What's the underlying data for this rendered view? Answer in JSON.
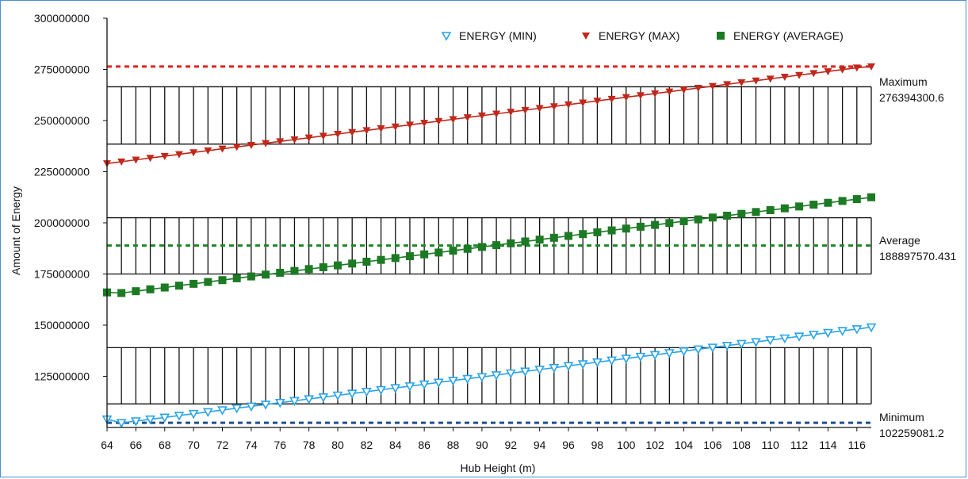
{
  "chart_data": {
    "type": "line",
    "xlabel": "Hub Height (m)",
    "ylabel": "Amount of Energy",
    "x": [
      64,
      65,
      66,
      67,
      68,
      69,
      70,
      71,
      72,
      73,
      74,
      75,
      76,
      77,
      78,
      79,
      80,
      81,
      82,
      83,
      84,
      85,
      86,
      87,
      88,
      89,
      90,
      91,
      92,
      93,
      94,
      95,
      96,
      97,
      98,
      99,
      100,
      101,
      102,
      103,
      104,
      105,
      106,
      107,
      108,
      109,
      110,
      111,
      112,
      113,
      114,
      115,
      116,
      117
    ],
    "xlim": [
      64,
      117
    ],
    "x_tick_labels": [
      "64",
      "66",
      "68",
      "70",
      "72",
      "74",
      "76",
      "78",
      "80",
      "82",
      "84",
      "86",
      "88",
      "90",
      "92",
      "94",
      "96",
      "98",
      "100",
      "102",
      "104",
      "106",
      "108",
      "110",
      "112",
      "114",
      "116"
    ],
    "ylim": [
      100000000,
      300000000
    ],
    "y_tick_labels": [
      "125000000",
      "150000000",
      "175000000",
      "200000000",
      "225000000",
      "250000000",
      "275000000",
      "300000000"
    ],
    "series": [
      {
        "name": "ENERGY (MIN)",
        "color": "#2aa4e8",
        "marker": "triangle-down-open",
        "y_start": 104000000,
        "y_min_at_65": 102259081.2,
        "y_end": 149000000,
        "values": [
          104000000,
          102259081.2,
          103100000,
          104000000,
          104900000,
          105800000,
          106700000,
          107600000,
          108500000,
          109400000,
          110300000,
          111200000,
          112100000,
          113000000,
          113900000,
          114800000,
          115700000,
          116600000,
          117500000,
          118400000,
          119300000,
          120200000,
          121100000,
          122000000,
          122900000,
          123800000,
          124700000,
          125600000,
          126500000,
          127400000,
          128300000,
          129200000,
          130100000,
          131000000,
          131900000,
          132800000,
          133700000,
          134600000,
          135500000,
          136400000,
          137300000,
          138200000,
          139100000,
          140000000,
          140900000,
          141800000,
          142700000,
          143600000,
          144500000,
          145400000,
          146300000,
          147200000,
          148100000,
          149000000
        ]
      },
      {
        "name": "ENERGY (MAX)",
        "color": "#c0281c",
        "marker": "triangle-down",
        "values": [
          229000000,
          229900000,
          230800000,
          231700000,
          232600000,
          233500000,
          234400000,
          235300000,
          236200000,
          237100000,
          238000000,
          238900000,
          239800000,
          240700000,
          241600000,
          242500000,
          243400000,
          244300000,
          245200000,
          246100000,
          247000000,
          247900000,
          248800000,
          249700000,
          250600000,
          251500000,
          252400000,
          253300000,
          254200000,
          255100000,
          256000000,
          256900000,
          257800000,
          258700000,
          259600000,
          260500000,
          261400000,
          262300000,
          263200000,
          264100000,
          265000000,
          265900000,
          266800000,
          267700000,
          268600000,
          269500000,
          270400000,
          271300000,
          272200000,
          273100000,
          274000000,
          274900000,
          275800000,
          276394300.6
        ]
      },
      {
        "name": "ENERGY (AVERAGE)",
        "color": "#1c7a24",
        "marker": "square",
        "values": [
          166000000,
          165700000,
          166600000,
          167500000,
          168400000,
          169300000,
          170200000,
          171100000,
          172000000,
          172900000,
          173800000,
          174700000,
          175600000,
          176500000,
          177400000,
          178300000,
          179200000,
          180100000,
          181000000,
          181900000,
          182800000,
          183700000,
          184600000,
          185500000,
          186400000,
          187300000,
          188200000,
          189100000,
          190000000,
          190900000,
          191800000,
          192700000,
          193600000,
          194500000,
          195400000,
          196300000,
          197200000,
          198100000,
          199000000,
          199900000,
          200800000,
          201700000,
          202600000,
          203500000,
          204400000,
          205300000,
          206200000,
          207100000,
          208000000,
          208900000,
          209800000,
          210700000,
          211600000,
          212500000
        ]
      }
    ],
    "reference_lines": [
      {
        "label": "Maximum",
        "value_text": "276394300.6",
        "value": 276394300.6,
        "color": "#e0241c"
      },
      {
        "label": "Average",
        "value_text": "188897570.431",
        "value": 188897570.431,
        "color": "#1c8a24"
      },
      {
        "label": "Minimum",
        "value_text": "102259081.2",
        "value": 102259081.2,
        "color": "#1f4f8f"
      }
    ],
    "error_bands": [
      {
        "low": 238500000,
        "high": 266500000
      },
      {
        "low": 175000000,
        "high": 202500000
      },
      {
        "low": 111500000,
        "high": 139000000
      }
    ],
    "legend_position": "top-right",
    "grid": false
  }
}
